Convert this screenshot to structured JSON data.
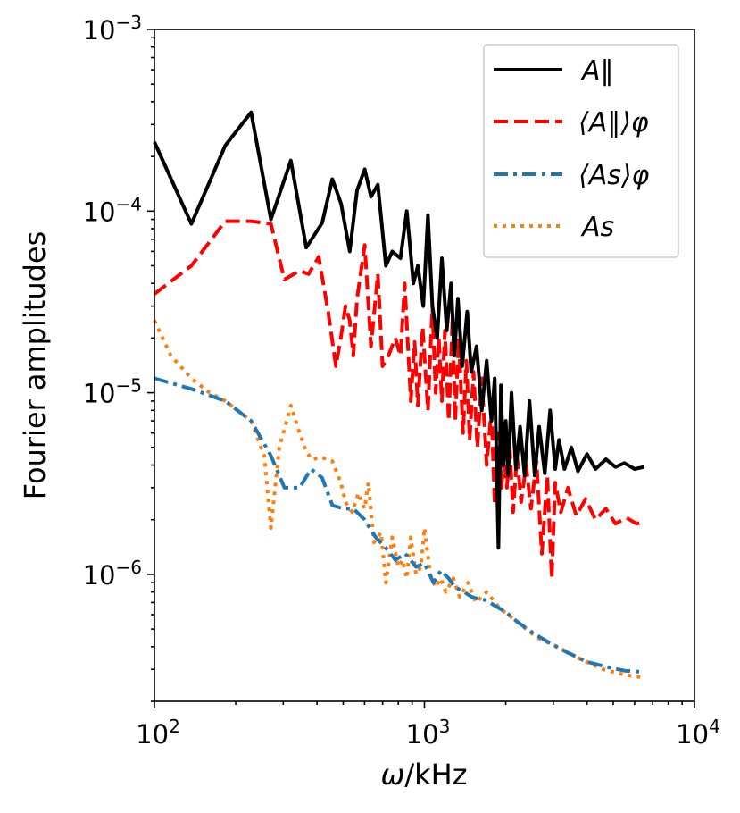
{
  "chart_data": {
    "type": "line",
    "title": "",
    "xlabel_parts": [
      "ω",
      "/kHz"
    ],
    "ylabel": "Fourier amplitudes",
    "xscale": "log",
    "yscale": "log",
    "xlim": [
      100,
      10000
    ],
    "ylim": [
      2e-07,
      0.001
    ],
    "grid": false,
    "legend_position": "top-right",
    "x_tick_labels": [
      {
        "value": 100,
        "base": "10",
        "exp": "2"
      },
      {
        "value": 1000,
        "base": "10",
        "exp": "3"
      },
      {
        "value": 10000,
        "base": "10",
        "exp": "4"
      }
    ],
    "y_tick_labels": [
      {
        "value": 1e-06,
        "base": "10",
        "exp": "−6"
      },
      {
        "value": 1e-05,
        "base": "10",
        "exp": "−5"
      },
      {
        "value": 0.0001,
        "base": "10",
        "exp": "−4"
      },
      {
        "value": 0.001,
        "base": "10",
        "exp": "−3"
      }
    ],
    "series": [
      {
        "name": "A_par",
        "legend_label": "A‖",
        "color": "#000000",
        "style": "solid",
        "x": [
          100,
          137,
          183,
          228,
          270,
          320,
          365,
          418,
          456,
          491,
          529,
          563,
          601,
          634,
          672,
          720,
          760,
          815,
          860,
          910,
          945,
          990,
          1030,
          1070,
          1115,
          1160,
          1210,
          1255,
          1290,
          1330,
          1380,
          1440,
          1490,
          1560,
          1630,
          1700,
          1770,
          1820,
          1880,
          1920,
          1960,
          2000,
          2040,
          2100,
          2180,
          2260,
          2350,
          2450,
          2560,
          2660,
          2790,
          2920,
          3050,
          3150,
          3300,
          3500,
          3700,
          4000,
          4300,
          4700,
          5100,
          5500,
          6000,
          6500
        ],
        "y": [
          0.00024,
          8.5e-05,
          0.00023,
          0.00035,
          9e-05,
          0.00019,
          6.3e-05,
          8.6e-05,
          0.00015,
          0.00011,
          6e-05,
          0.00013,
          0.00017,
          0.00012,
          0.00014,
          5e-05,
          6e-05,
          5.5e-05,
          0.0001,
          4e-05,
          5e-05,
          3e-05,
          9.5e-05,
          3e-05,
          2e-05,
          5.5e-05,
          2.2e-05,
          4e-05,
          1.6e-05,
          3.3e-05,
          1.4e-05,
          2.8e-05,
          1.3e-05,
          1.8e-05,
          8e-06,
          1.5e-05,
          7e-06,
          1.2e-05,
          1.4e-06,
          1.1e-05,
          4e-06,
          7e-06,
          3.5e-06,
          1e-05,
          3.8e-06,
          6.5e-06,
          3.5e-06,
          9e-06,
          3.5e-06,
          6.5e-06,
          3.6e-06,
          8e-06,
          3.8e-06,
          5.5e-06,
          3.8e-06,
          5e-06,
          3.7e-06,
          4.6e-06,
          3.8e-06,
          4.3e-06,
          3.9e-06,
          4.1e-06,
          3.8e-06,
          3.9e-06
        ]
      },
      {
        "name": "A_par_avg",
        "legend_label": "⟨A‖⟩φ",
        "color": "#ff0000",
        "style": "dashed",
        "x": [
          100,
          137,
          183,
          228,
          270,
          303,
          345,
          372,
          406,
          440,
          470,
          490,
          510,
          529,
          545,
          563,
          601,
          634,
          672,
          700,
          735,
          780,
          815,
          845,
          890,
          920,
          945,
          985,
          1030,
          1070,
          1100,
          1130,
          1160,
          1190,
          1230,
          1270,
          1300,
          1340,
          1390,
          1430,
          1470,
          1520,
          1570,
          1630,
          1700,
          1770,
          1820,
          1880,
          1930,
          1970,
          2020,
          2070,
          2130,
          2200,
          2280,
          2380,
          2480,
          2600,
          2720,
          2850,
          2960,
          3050,
          3200,
          3400,
          3650,
          3950,
          4300,
          4700,
          5100,
          5600,
          6100,
          6500
        ],
        "y": [
          3.5e-05,
          5e-05,
          8.8e-05,
          8.8e-05,
          8.5e-05,
          4.2e-05,
          4.7e-05,
          4.5e-05,
          5.6e-05,
          2.8e-05,
          1.4e-05,
          2e-05,
          3e-05,
          2.5e-05,
          1.6e-05,
          3.3e-05,
          6.5e-05,
          1.8e-05,
          4.5e-05,
          1.4e-05,
          1.6e-05,
          2e-05,
          1.6e-05,
          4e-05,
          9e-06,
          1.9e-05,
          8.5e-06,
          2.3e-05,
          8e-06,
          3e-05,
          1e-05,
          2e-05,
          9e-06,
          2.2e-05,
          7e-06,
          2.6e-05,
          7e-06,
          2e-05,
          6e-06,
          1.5e-05,
          5.5e-06,
          1.3e-05,
          5e-06,
          1.2e-05,
          4e-06,
          8e-06,
          2.4e-06,
          6e-06,
          3e-06,
          4.5e-06,
          3e-06,
          5e-06,
          2.2e-06,
          4.5e-06,
          2.5e-06,
          4e-06,
          2.3e-06,
          4.2e-06,
          1.3e-06,
          3.5e-06,
          9.5e-07,
          3.2e-06,
          2.2e-06,
          3e-06,
          2.1e-06,
          2.6e-06,
          2e-06,
          2.3e-06,
          1.9e-06,
          2.05e-06,
          1.9e-06,
          1.95e-06
        ]
      },
      {
        "name": "A_s_avg",
        "legend_label": "⟨As⟩φ",
        "color": "#1f77b4",
        "style": "dashdot",
        "x": [
          100,
          137,
          183,
          228,
          270,
          303,
          345,
          380,
          418,
          456,
          500,
          545,
          600,
          660,
          720,
          780,
          850,
          930,
          1000,
          1080,
          1150,
          1230,
          1300,
          1400,
          1500,
          1600,
          1700,
          1800,
          2000,
          2200,
          2500,
          2900,
          3400,
          4000,
          4700,
          5500,
          6500
        ],
        "y": [
          1.2e-05,
          1.05e-05,
          9e-06,
          7e-06,
          4.5e-06,
          3e-06,
          3e-06,
          3.8e-06,
          3.4e-06,
          2.4e-06,
          2.3e-06,
          2.3e-06,
          2e-06,
          1.6e-06,
          1.4e-06,
          1.2e-06,
          1.3e-06,
          1.1e-06,
          1.15e-06,
          9e-07,
          1.05e-06,
          9.5e-07,
          8.5e-07,
          8e-07,
          7.5e-07,
          7.3e-07,
          7.2e-07,
          6.8e-07,
          6.2e-07,
          5.5e-07,
          4.8e-07,
          4.2e-07,
          3.7e-07,
          3.3e-07,
          3.1e-07,
          2.95e-07,
          2.9e-07
        ]
      },
      {
        "name": "A_s",
        "legend_label": "As",
        "color": "#ff7f0e",
        "style": "dotted",
        "x": [
          100,
          115,
          137,
          160,
          183,
          228,
          255,
          270,
          290,
          320,
          345,
          360,
          380,
          418,
          456,
          490,
          510,
          540,
          570,
          600,
          620,
          650,
          690,
          720,
          760,
          800,
          830,
          860,
          890,
          930,
          970,
          1000,
          1050,
          1100,
          1150,
          1200,
          1280,
          1350,
          1450,
          1550,
          1700,
          1900,
          2200,
          2600,
          3100,
          3800,
          4600,
          5500,
          6500
        ],
        "y": [
          2.5e-05,
          1.6e-05,
          1.2e-05,
          1e-05,
          9e-06,
          7e-06,
          4.5e-06,
          1.8e-06,
          5e-06,
          8.5e-06,
          6e-06,
          5e-06,
          4.3e-06,
          4.4e-06,
          4.2e-06,
          3.2e-06,
          2.5e-06,
          2.2e-06,
          2.8e-06,
          2.3e-06,
          3.2e-06,
          1.5e-06,
          1.7e-06,
          9e-07,
          1.6e-06,
          1.1e-06,
          1.2e-06,
          9.5e-07,
          1.6e-06,
          1e-06,
          1.1e-06,
          1.8e-06,
          1e-06,
          8.5e-07,
          9.5e-07,
          8e-07,
          9.5e-07,
          7.5e-07,
          9e-07,
          7e-07,
          8e-07,
          6.5e-07,
          5.5e-07,
          4.5e-07,
          4e-07,
          3.4e-07,
          3e-07,
          2.8e-07,
          2.7e-07
        ]
      }
    ]
  }
}
